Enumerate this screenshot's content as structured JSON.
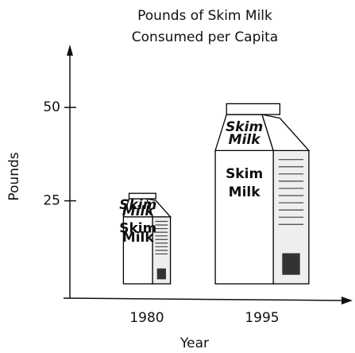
{
  "chart_data": {
    "type": "pictograph",
    "title": [
      "Pounds of Skim Milk",
      "Consumed per Capita"
    ],
    "x_label": "Year",
    "y_label": "Pounds",
    "categories": [
      "1980",
      "1995"
    ],
    "values": [
      27,
      51
    ],
    "carton_text": [
      "Skim",
      "Milk"
    ],
    "ylim": [
      0,
      66
    ],
    "yticks": [
      25,
      50
    ],
    "color": "#000000"
  }
}
